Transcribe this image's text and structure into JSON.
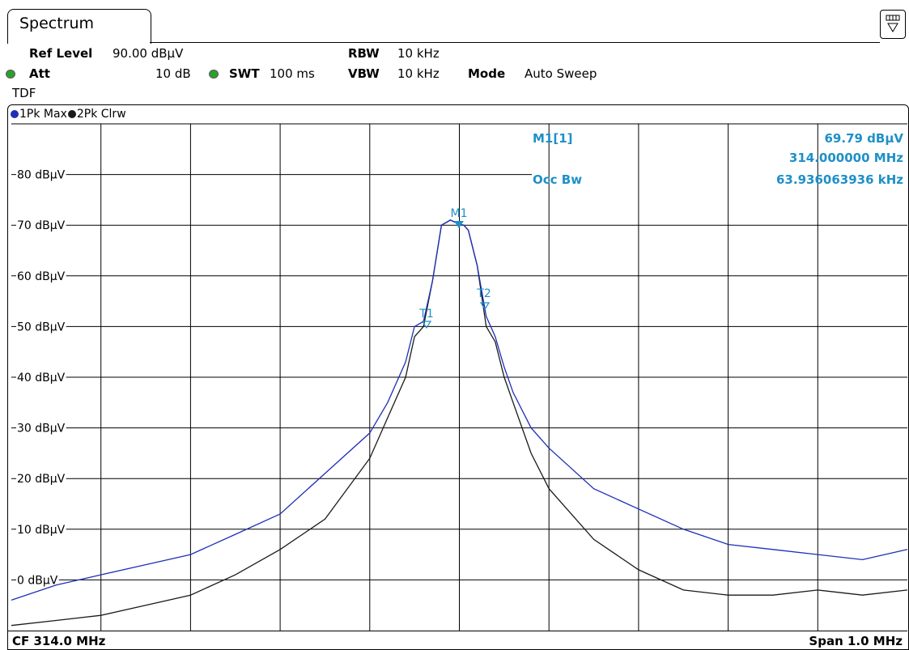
{
  "tab": {
    "label": "Spectrum"
  },
  "settings": {
    "ref_level_label": "Ref Level",
    "ref_level_value": "90.00 dBµV",
    "att_label": "Att",
    "att_value": "10 dB",
    "swt_label": "SWT",
    "swt_value": "100 ms",
    "rbw_label": "RBW",
    "rbw_value": "10 kHz",
    "vbw_label": "VBW",
    "vbw_value": "10 kHz",
    "mode_label": "Mode",
    "mode_value": "Auto Sweep",
    "tdf_label": "TDF"
  },
  "legend": {
    "trace1": "1Pk Max",
    "trace2": "2Pk Clrw",
    "trace1_color": "#1f2fb5",
    "trace2_color": "#1a1a1a"
  },
  "markers": {
    "m1_label": "M1[1]",
    "m1_level": "69.79 dBµV",
    "m1_freq": "314.000000 MHz",
    "occ_label": "Occ Bw",
    "occ_value": "63.936063936 kHz",
    "m1_tag": "M1",
    "t1_tag": "T1",
    "t2_tag": "T2",
    "marker_color": "#1e90c8"
  },
  "footer": {
    "cf": "CF 314.0 MHz",
    "span": "Span 1.0 MHz"
  },
  "chart_data": {
    "type": "line",
    "x_unit": "MHz",
    "xlim": [
      313.5,
      314.5
    ],
    "ylim": [
      -10,
      90
    ],
    "y_ticks": [
      0,
      10,
      20,
      30,
      40,
      50,
      60,
      70,
      80
    ],
    "y_tick_labels": [
      "0 dBµV",
      "10 dBµV",
      "20 dBµV",
      "30 dBµV",
      "40 dBµV",
      "50 dBµV",
      "60 dBµV",
      "70 dBµV",
      "80 dBµV"
    ],
    "x_divisions": 10,
    "grid": true,
    "reference_line": 80,
    "series": [
      {
        "name": "1Pk Max",
        "color": "#1f2fb5",
        "x": [
          313.5,
          313.55,
          313.6,
          313.65,
          313.7,
          313.75,
          313.8,
          313.85,
          313.9,
          313.92,
          313.94,
          313.95,
          313.96,
          313.97,
          313.98,
          313.99,
          314.0,
          314.005,
          314.01,
          314.02,
          314.03,
          314.04,
          314.05,
          314.06,
          314.08,
          314.1,
          314.15,
          314.2,
          314.25,
          314.3,
          314.35,
          314.4,
          314.45,
          314.5
        ],
        "y": [
          -4,
          -1,
          1,
          3,
          5,
          9,
          13,
          21,
          29,
          35,
          43,
          50,
          51,
          59,
          70,
          71,
          70.2,
          70,
          69,
          62,
          52,
          48,
          42,
          37,
          30,
          26,
          18,
          14,
          10,
          7,
          6,
          5,
          4,
          6
        ]
      },
      {
        "name": "2Pk Clrw",
        "color": "#1a1a1a",
        "x": [
          313.5,
          313.55,
          313.6,
          313.65,
          313.7,
          313.75,
          313.8,
          313.85,
          313.9,
          313.92,
          313.94,
          313.95,
          313.96,
          313.97,
          313.98,
          313.99,
          314.0,
          314.005,
          314.01,
          314.02,
          314.03,
          314.04,
          314.05,
          314.06,
          314.08,
          314.1,
          314.15,
          314.2,
          314.25,
          314.3,
          314.35,
          314.4,
          314.45,
          314.5
        ],
        "y": [
          -9,
          -8,
          -7,
          -5,
          -3,
          1,
          6,
          12,
          24,
          32,
          40,
          48,
          50,
          59,
          70,
          71,
          70.2,
          70,
          69,
          62,
          50,
          47,
          40,
          35,
          25,
          18,
          8,
          2,
          -2,
          -3,
          -3,
          -2,
          -3,
          -2
        ]
      }
    ]
  }
}
